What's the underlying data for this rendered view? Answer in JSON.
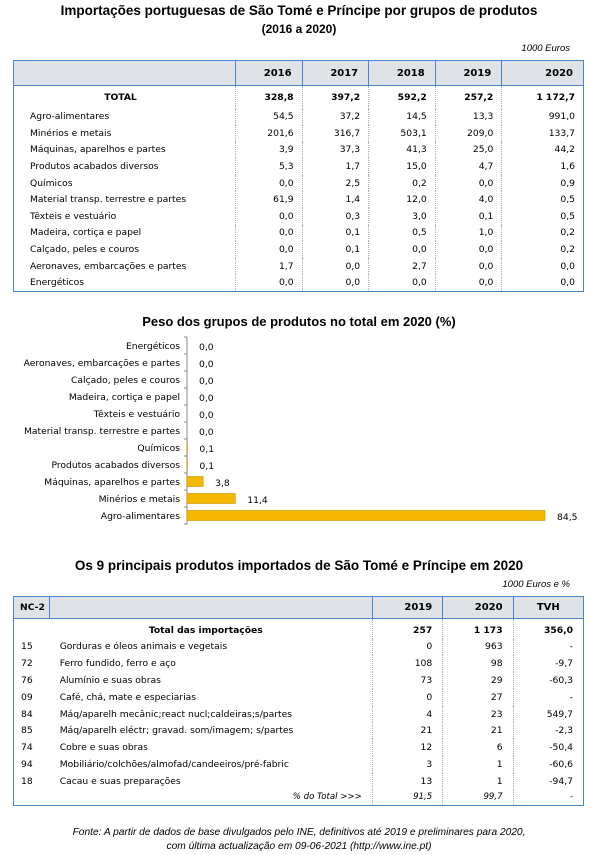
{
  "table1": {
    "title": "Importações portuguesas de São Tomé e Príncipe por grupos de produtos",
    "subtitle": "(2016 a 2020)",
    "unit": "1000 Euros",
    "years": [
      "2016",
      "2017",
      "2018",
      "2019",
      "2020"
    ],
    "total": {
      "label": "TOTAL",
      "values": [
        "328,8",
        "397,2",
        "592,2",
        "257,2",
        "1 172,7"
      ]
    },
    "rows": [
      {
        "label": "Agro-alimentares",
        "values": [
          "54,5",
          "37,2",
          "14,5",
          "13,3",
          "991,0"
        ]
      },
      {
        "label": "Minérios e metais",
        "values": [
          "201,6",
          "316,7",
          "503,1",
          "209,0",
          "133,7"
        ]
      },
      {
        "label": "Máquinas, aparelhos e partes",
        "values": [
          "3,9",
          "37,3",
          "41,3",
          "25,0",
          "44,2"
        ]
      },
      {
        "label": "Produtos acabados diversos",
        "values": [
          "5,3",
          "1,7",
          "15,0",
          "4,7",
          "1,6"
        ]
      },
      {
        "label": "Químicos",
        "values": [
          "0,0",
          "2,5",
          "0,2",
          "0,0",
          "0,9"
        ]
      },
      {
        "label": "Material transp. terrestre e partes",
        "values": [
          "61,9",
          "1,4",
          "12,0",
          "4,0",
          "0,5"
        ]
      },
      {
        "label": "Têxteis e vestuário",
        "values": [
          "0,0",
          "0,3",
          "3,0",
          "0,1",
          "0,5"
        ]
      },
      {
        "label": "Madeira, cortiça e papel",
        "values": [
          "0,0",
          "0,1",
          "0,5",
          "1,0",
          "0,2"
        ]
      },
      {
        "label": "Calçado, peles e couros",
        "values": [
          "0,0",
          "0,1",
          "0,0",
          "0,0",
          "0,2"
        ]
      },
      {
        "label": "Aeronaves, embarcações e partes",
        "values": [
          "1,7",
          "0,0",
          "2,7",
          "0,0",
          "0,0"
        ]
      },
      {
        "label": "Energéticos",
        "values": [
          "0,0",
          "0,0",
          "0,0",
          "0,0",
          "0,0"
        ]
      }
    ]
  },
  "chart_data": {
    "type": "bar",
    "orientation": "horizontal",
    "title": "Peso dos grupos de produtos no total em 2020 (%)",
    "categories": [
      "Energéticos",
      "Aeronaves, embarcações e partes",
      "Calçado, peles e couros",
      "Madeira, cortiça e papel",
      "Têxteis e vestuário",
      "Material transp. terrestre e partes",
      "Químicos",
      "Produtos acabados diversos",
      "Máquinas, aparelhos e partes",
      "Minérios e metais",
      "Agro-alimentares"
    ],
    "values": [
      0.0,
      0.0,
      0.0,
      0.0,
      0.0,
      0.0,
      0.1,
      0.1,
      3.8,
      11.4,
      84.5
    ],
    "labels": [
      "0,0",
      "0,0",
      "0,0",
      "0,0",
      "0,0",
      "0,0",
      "0,1",
      "0,1",
      "3,8",
      "11,4",
      "84,5"
    ],
    "xlim": [
      0,
      84.5
    ],
    "grid": false,
    "bar_color": "#f5b800",
    "bar_edge": "#c78f00"
  },
  "table2": {
    "title": "Os 9 principais produtos importados de São Tomé e Príncipe em 2020",
    "unit": "1000 Euros e %",
    "code_header": "NC-2",
    "col_headers": [
      "2019",
      "2020",
      "TVH"
    ],
    "total": {
      "label": "Total das importações",
      "values": [
        "257",
        "1 173",
        "356,0"
      ]
    },
    "rows": [
      {
        "code": "15",
        "product": "Gorduras e óleos animais e vegetais",
        "values": [
          "0",
          "963",
          "-"
        ]
      },
      {
        "code": "72",
        "product": "Ferro fundido, ferro e aço",
        "values": [
          "108",
          "98",
          "-9,7"
        ]
      },
      {
        "code": "76",
        "product": "Alumínio e suas obras",
        "values": [
          "73",
          "29",
          "-60,3"
        ]
      },
      {
        "code": "09",
        "product": "Café, chá, mate e especiarias",
        "values": [
          "0",
          "27",
          "-"
        ]
      },
      {
        "code": "84",
        "product": "Máq/aparelh mecânic;react nucl;caldeiras;s/partes",
        "values": [
          "4",
          "23",
          "549,7"
        ]
      },
      {
        "code": "85",
        "product": "Máq/aparelh eléctr; gravad. som/imagem; s/partes",
        "values": [
          "21",
          "21",
          "-2,3"
        ]
      },
      {
        "code": "74",
        "product": "Cobre e suas obras",
        "values": [
          "12",
          "6",
          "-50,4"
        ]
      },
      {
        "code": "94",
        "product": "Mobiliário/colchões/almofad/candeeiros/pré-fabric",
        "values": [
          "3",
          "1",
          "-60,6"
        ]
      },
      {
        "code": "18",
        "product": "Cacau e suas preparações",
        "values": [
          "13",
          "1",
          "-94,7"
        ]
      }
    ],
    "pct_total": {
      "label": "% do Total >>>",
      "values": [
        "91,5",
        "99,7",
        "-"
      ]
    }
  },
  "source": {
    "line1": "Fonte: A partir de dados de base divulgados pelo INE, definitivos até 2019 e preliminares para 2020,",
    "line2": "com última actualização em 09-06-2021  (http://www.ine.pt)"
  }
}
